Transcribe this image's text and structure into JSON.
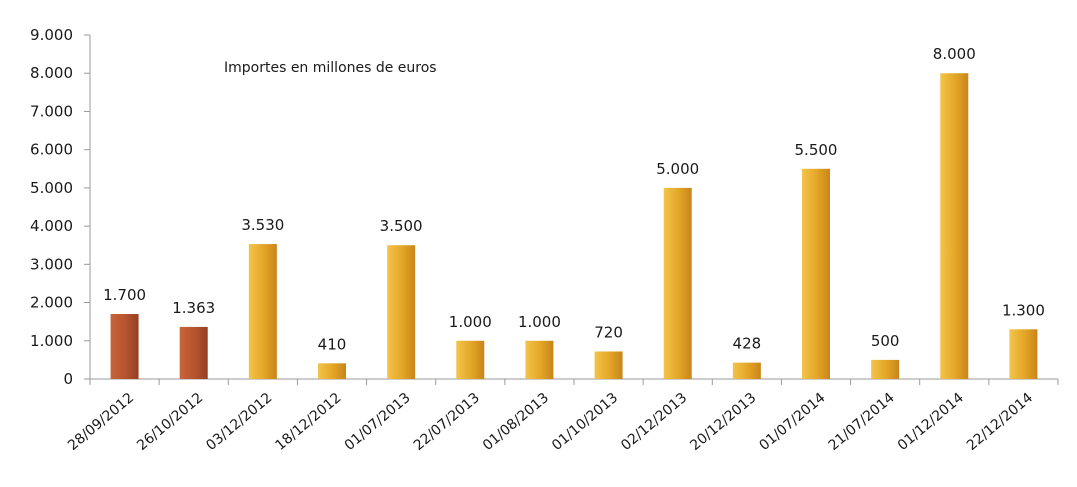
{
  "chart_data": {
    "type": "bar",
    "annotation": "Importes en millones de euros",
    "categories": [
      "28/09/2012",
      "26/10/2012",
      "03/12/2012",
      "18/12/2012",
      "01/07/2013",
      "22/07/2013",
      "01/08/2013",
      "01/10/2013",
      "02/12/2013",
      "20/12/2013",
      "01/07/2014",
      "21/07/2014",
      "01/12/2014",
      "22/12/2014"
    ],
    "values": [
      1700,
      1363,
      3530,
      410,
      3500,
      1000,
      1000,
      720,
      5000,
      428,
      5500,
      500,
      8000,
      1300
    ],
    "value_labels": [
      "1.700",
      "1.363",
      "3.530",
      "410",
      "3.500",
      "1.000",
      "1.000",
      "720",
      "5.000",
      "428",
      "5.500",
      "500",
      "8.000",
      "1.300"
    ],
    "ylim": [
      0,
      9000
    ],
    "yticks": [
      0,
      1000,
      2000,
      3000,
      4000,
      5000,
      6000,
      7000,
      8000,
      9000
    ],
    "ytick_labels": [
      "0",
      "1.000",
      "2.000",
      "3.000",
      "4.000",
      "5.000",
      "6.000",
      "7.000",
      "8.000",
      "9.000"
    ],
    "bar_colors": [
      "#b5532f",
      "#b5532f",
      "#e3a526",
      "#e3a526",
      "#e3a526",
      "#e3a526",
      "#e3a526",
      "#e3a526",
      "#e3a526",
      "#e3a526",
      "#e3a526",
      "#e3a526",
      "#e3a526",
      "#e3a526"
    ],
    "grid": false
  }
}
